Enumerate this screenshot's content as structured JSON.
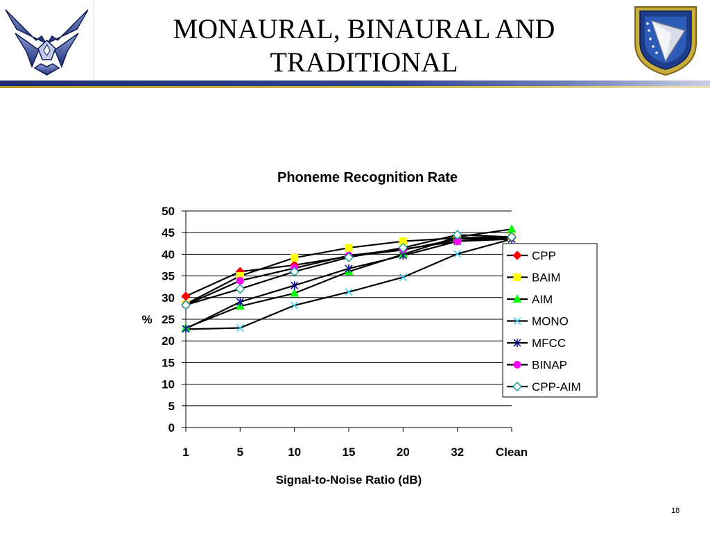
{
  "slide": {
    "title_line1": "MONAURAL, BINAURAL AND",
    "title_line2": "TRADITIONAL",
    "page_number": "18"
  },
  "colors": {
    "navy": "#1c2c6e",
    "gold": "#c9ad3c",
    "CPP": "#ff0000",
    "BAIM": "#ffff00",
    "AIM": "#00ff00",
    "MONO": "#33ccff",
    "MFCC": "#000099",
    "BINAP": "#ff00ff",
    "CPP-AIM": "#009999"
  },
  "icons": {
    "left_logo": "air-force-wings-icon",
    "right_logo": "air-force-research-laboratory-seal-icon"
  },
  "chart_data": {
    "type": "line",
    "title": "Phoneme Recognition Rate",
    "xlabel": "Signal-to-Noise Ratio (dB)",
    "ylabel": "%",
    "categories": [
      "1",
      "5",
      "10",
      "15",
      "20",
      "32",
      "Clean"
    ],
    "ylim": [
      0,
      50
    ],
    "yticks": [
      0,
      5,
      10,
      15,
      20,
      25,
      30,
      35,
      40,
      45,
      50
    ],
    "grid": "horizontal",
    "legend": "right",
    "series": [
      {
        "name": "CPP",
        "marker": "diamond",
        "values": [
          30.3,
          36.0,
          37.5,
          39.5,
          41.0,
          43.5,
          43.8
        ]
      },
      {
        "name": "BAIM",
        "marker": "square",
        "values": [
          28.5,
          35.0,
          39.2,
          41.5,
          43.0,
          43.8,
          44.0
        ]
      },
      {
        "name": "AIM",
        "marker": "triangle",
        "values": [
          23.0,
          28.0,
          31.0,
          36.0,
          40.0,
          44.0,
          45.8
        ]
      },
      {
        "name": "MONO",
        "marker": "x",
        "values": [
          22.7,
          23.0,
          28.2,
          31.3,
          34.7,
          40.1,
          43.5
        ]
      },
      {
        "name": "MFCC",
        "marker": "star",
        "values": [
          22.8,
          29.0,
          32.8,
          36.7,
          39.7,
          43.0,
          43.5
        ]
      },
      {
        "name": "BINAP",
        "marker": "circle",
        "values": [
          28.3,
          33.9,
          36.8,
          39.7,
          41.2,
          43.0,
          44.0
        ]
      },
      {
        "name": "CPP-AIM",
        "marker": "open-diamond",
        "values": [
          28.3,
          32.0,
          36.0,
          39.3,
          41.5,
          44.5,
          44.0
        ]
      }
    ]
  }
}
